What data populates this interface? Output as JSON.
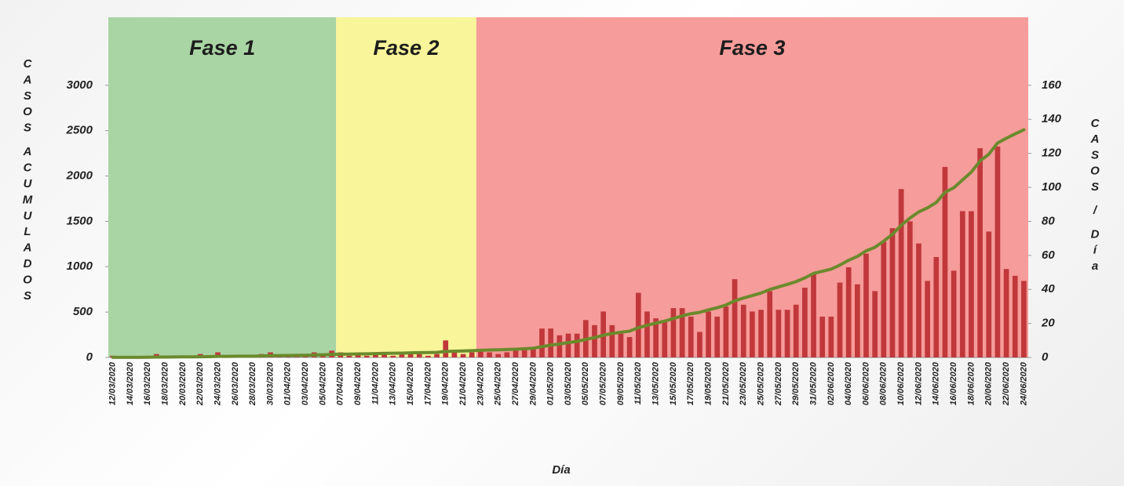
{
  "chart_data": {
    "type": "bar-line",
    "x_label": "Día",
    "y_label": "CASOS ACUMULADOS",
    "y2_label": "CASOS / Día",
    "categories": [
      "12/03/2020",
      null,
      "14/03/2020",
      null,
      "16/03/2020",
      null,
      "18/03/2020",
      null,
      "20/03/2020",
      null,
      "22/03/2020",
      null,
      "24/03/2020",
      null,
      "26/03/2020",
      null,
      "28/03/2020",
      null,
      "30/03/2020",
      null,
      "01/04/2020",
      null,
      "03/04/2020",
      null,
      "05/04/2020",
      null,
      "07/04/2020",
      null,
      "09/04/2020",
      null,
      "11/04/2020",
      null,
      "13/04/2020",
      null,
      "15/04/2020",
      null,
      "17/04/2020",
      null,
      "19/04/2020",
      null,
      "21/04/2020",
      null,
      "23/04/2020",
      null,
      "25/04/2020",
      null,
      "27/04/2020",
      null,
      "29/04/2020",
      null,
      "01/05/2020",
      null,
      "03/05/2020",
      null,
      "05/05/2020",
      null,
      "07/05/2020",
      null,
      "09/05/2020",
      null,
      "11/05/2020",
      null,
      "13/05/2020",
      null,
      "15/05/2020",
      null,
      "17/05/2020",
      null,
      "19/05/2020",
      null,
      "21/05/2020",
      null,
      "23/05/2020",
      null,
      "25/05/2020",
      null,
      "27/05/2020",
      null,
      "29/05/2020",
      null,
      "31/05/2020",
      null,
      "02/06/2020",
      null,
      "04/06/2020",
      null,
      "06/06/2020",
      null,
      "08/06/2020",
      null,
      "10/06/2020",
      null,
      "12/06/2020",
      null,
      "14/06/2020",
      null,
      "16/06/2020",
      null,
      "18/06/2020",
      null,
      "20/06/2020",
      null,
      "22/06/2020",
      null,
      "24/06/2020"
    ],
    "series": [
      {
        "name": "Casos / Día",
        "kind": "bar",
        "axis": "y2",
        "color": "#c0383b",
        "values": [
          1,
          0,
          0,
          0,
          1,
          2,
          0,
          1,
          1,
          0,
          2,
          1,
          3,
          0,
          1,
          1,
          0,
          2,
          3,
          1,
          2,
          1,
          1,
          3,
          2,
          4,
          3,
          1,
          2,
          1,
          2,
          3,
          1,
          2,
          3,
          2,
          1,
          2,
          10,
          3,
          2,
          3,
          5,
          3,
          2,
          3,
          4,
          5,
          6,
          17,
          17,
          13,
          14,
          14,
          22,
          19,
          27,
          19,
          14,
          12,
          38,
          27,
          23,
          22,
          29,
          29,
          24,
          15,
          27,
          24,
          30,
          46,
          31,
          27,
          28,
          39,
          28,
          28,
          31,
          41,
          49,
          24,
          24,
          44,
          53,
          43,
          61,
          39,
          68,
          76,
          99,
          80,
          67,
          45,
          59,
          112,
          51,
          86,
          86,
          123,
          74,
          124,
          52,
          48,
          45
        ]
      },
      {
        "name": "Casos acumulados",
        "kind": "line",
        "axis": "y",
        "color": "#6b8a2c",
        "values": [
          1,
          1,
          1,
          1,
          2,
          4,
          4,
          5,
          6,
          6,
          8,
          9,
          12,
          12,
          13,
          14,
          14,
          16,
          19,
          20,
          22,
          23,
          24,
          27,
          29,
          33,
          36,
          37,
          39,
          40,
          42,
          45,
          46,
          48,
          51,
          53,
          54,
          56,
          66,
          69,
          71,
          74,
          79,
          82,
          84,
          87,
          91,
          96,
          102,
          119,
          136,
          149,
          163,
          177,
          199,
          218,
          245,
          264,
          278,
          290,
          328,
          355,
          378,
          400,
          429,
          458,
          482,
          497,
          524,
          548,
          578,
          624,
          655,
          682,
          710,
          749,
          777,
          805,
          836,
          877,
          926,
          950,
          974,
          1018,
          1071,
          1114,
          1175,
          1214,
          1282,
          1358,
          1457,
          1537,
          1604,
          1649,
          1708,
          1820,
          1871,
          1957,
          2043,
          2166,
          2240,
          2364,
          2416,
          2464,
          2509
        ]
      }
    ],
    "ylim": [
      0,
      3750
    ],
    "yticks": [
      0,
      500,
      1000,
      1500,
      2000,
      2500,
      3000
    ],
    "y2lim": [
      0,
      200
    ],
    "y2ticks": [
      0,
      20,
      40,
      60,
      80,
      100,
      120,
      140,
      160
    ],
    "grid": false,
    "phases": [
      {
        "label": "Fase 1",
        "start": "12/03/2020",
        "color": "#a9d4a4"
      },
      {
        "label": "Fase 2",
        "start": "07/04/2020",
        "color": "#f8f59a"
      },
      {
        "label": "Fase 3",
        "start": "23/04/2020",
        "color": "#f69c9a"
      }
    ]
  }
}
